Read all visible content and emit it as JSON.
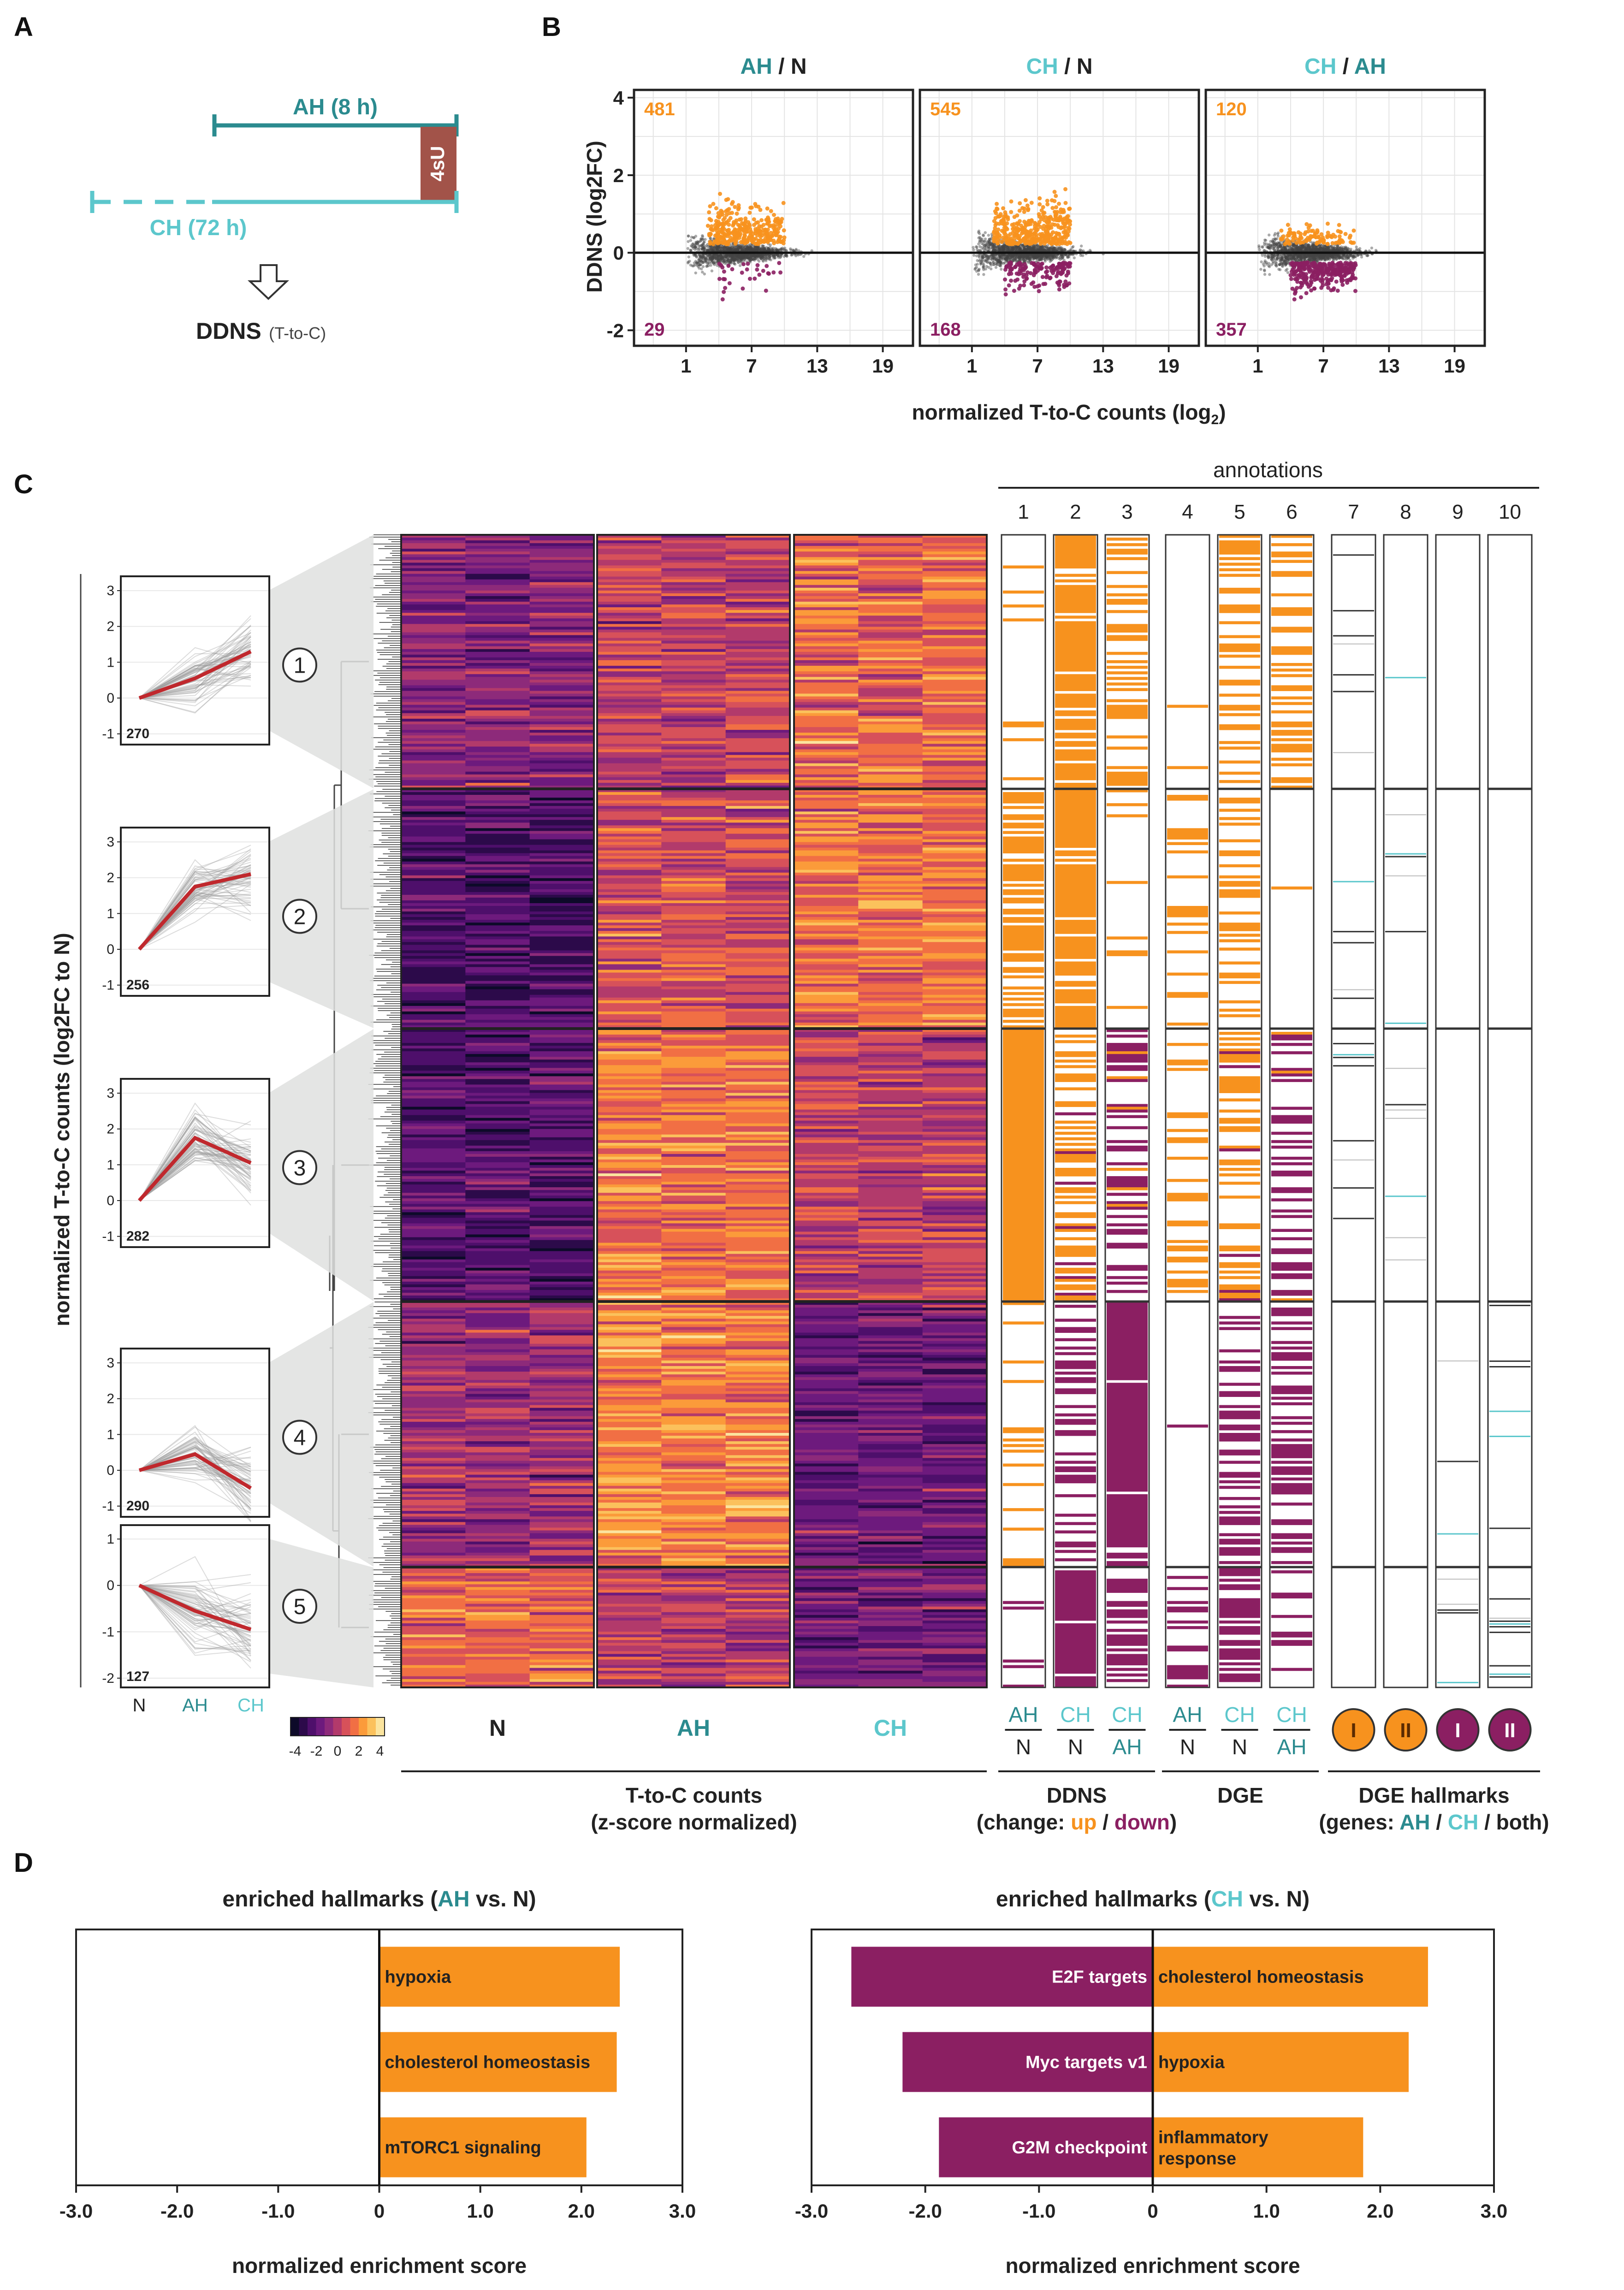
{
  "colors": {
    "ah": "#2b8b8f",
    "ch": "#5cc7cc",
    "up": "#f7921e",
    "down": "#8b1f62",
    "red": "#c0282d",
    "labelbox": "#a25349"
  },
  "panel_a": {
    "label": "A",
    "ah_text": "AH (8 h)",
    "ch_text": "CH (72 h)",
    "su_text": "4sU",
    "ddns_main": "DDNS",
    "ddns_sub": "(T-to-C)"
  },
  "panel_b": {
    "label": "B",
    "ylabel": "DDNS (log2FC)",
    "xlabel": "normalized T-to-C counts (log",
    "xlabel_sub": "2",
    "xlabel_end": ")",
    "panels": [
      {
        "num": "AH",
        "den": "N",
        "up": "481",
        "down": "29"
      },
      {
        "num": "CH",
        "den": "N",
        "up": "545",
        "down": "168"
      },
      {
        "num": "CH",
        "den": "AH",
        "up": "120",
        "down": "357"
      }
    ],
    "yticks": [
      "4",
      "2",
      "0",
      "-2"
    ],
    "xticks": [
      "1",
      "7",
      "13",
      "19"
    ]
  },
  "panel_c": {
    "label": "C",
    "annotations_title": "annotations",
    "annotation_numbers": [
      "1",
      "2",
      "3",
      "4",
      "5",
      "6",
      "7",
      "8",
      "9",
      "10"
    ],
    "ylabel": "normalized T-to-C counts (log2FC to N)",
    "clusters": [
      {
        "id": "1",
        "n": "270"
      },
      {
        "id": "2",
        "n": "256"
      },
      {
        "id": "3",
        "n": "282"
      },
      {
        "id": "4",
        "n": "290"
      },
      {
        "id": "5",
        "n": "127"
      }
    ],
    "line_x": [
      "N",
      "AH",
      "CH"
    ],
    "condition_labels": [
      "N",
      "AH",
      "CH"
    ],
    "scale_ticks": [
      "-4",
      "-2",
      "0",
      "2",
      "4"
    ],
    "ddns_pairs": [
      {
        "num": "AH",
        "den": "N"
      },
      {
        "num": "CH",
        "den": "N"
      },
      {
        "num": "CH",
        "den": "AH"
      }
    ],
    "dge_pairs": [
      {
        "num": "AH",
        "den": "N"
      },
      {
        "num": "CH",
        "den": "N"
      },
      {
        "num": "CH",
        "den": "AH"
      }
    ],
    "hallmark_badges": [
      "I",
      "II",
      "I",
      "II"
    ],
    "footer_tc_1": "T-to-C counts",
    "footer_tc_2": "(z-score normalized)",
    "footer_ddns_1": "DDNS",
    "footer_ddns_2a": "(change: ",
    "footer_ddns_up": "up",
    "footer_ddns_sep": " / ",
    "footer_ddns_down": "down",
    "footer_ddns_end": ")",
    "footer_dge": "DGE",
    "footer_hall_1": "DGE hallmarks",
    "footer_hall_2a": "(genes: ",
    "footer_hall_ah": "AH",
    "footer_hall_sep1": " / ",
    "footer_hall_ch": "CH",
    "footer_hall_sep2": " / both)"
  },
  "panel_d": {
    "label": "D",
    "xlabel": "normalized enrichment score",
    "xticks": [
      "-3.0",
      "-2.0",
      "-1.0",
      "0",
      "1.0",
      "2.0",
      "3.0"
    ]
  },
  "chart_data": [
    {
      "type": "bar",
      "title": "enriched hallmarks (AH vs. N)",
      "title_pre": "enriched hallmarks (",
      "title_cond": "AH",
      "title_post": " vs. N)",
      "xlabel": "normalized enrichment score",
      "xlim": [
        -3,
        3
      ],
      "categories": [
        "hypoxia",
        "cholesterol homeostasis",
        "mTORC1 signaling"
      ],
      "values": [
        2.38,
        2.35,
        2.05
      ]
    },
    {
      "type": "bar",
      "title": "enriched hallmarks (CH vs. N)",
      "title_pre": "enriched hallmarks (",
      "title_cond": "CH",
      "title_post": " vs. N)",
      "xlabel": "normalized enrichment score",
      "xlim": [
        -3,
        3
      ],
      "categories": [
        "E2F targets",
        "cholesterol homeostasis",
        "Myc targets v1",
        "hypoxia",
        "G2M checkpoint",
        "inflammatory response"
      ],
      "values": [
        -2.65,
        2.42,
        -2.2,
        2.25,
        -1.88,
        1.85
      ],
      "label_lines": [
        [
          "E2F targets"
        ],
        [
          "cholesterol homeostasis"
        ],
        [
          "Myc targets v1"
        ],
        [
          "hypoxia"
        ],
        [
          "G2M checkpoint"
        ],
        [
          "inflammatory",
          "response"
        ]
      ]
    }
  ]
}
